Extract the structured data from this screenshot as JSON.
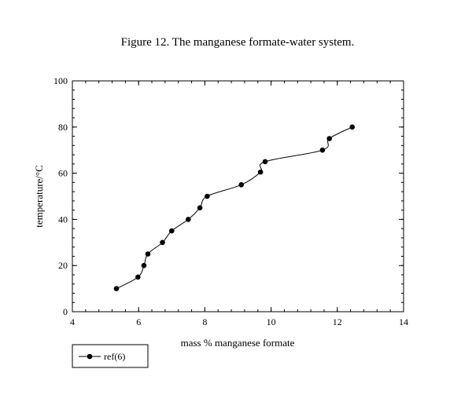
{
  "chart_data": {
    "type": "line",
    "title": "Figure 12. The manganese formate-water system.",
    "xlabel": "mass % manganese formate",
    "ylabel": "temperature/°C",
    "xlim": [
      4,
      14
    ],
    "ylim": [
      0,
      100
    ],
    "x_ticks": [
      4,
      6,
      8,
      10,
      12,
      14
    ],
    "y_ticks": [
      0,
      20,
      40,
      60,
      80,
      100
    ],
    "grid": false,
    "legend_position": "bottom-left, below plot",
    "series": [
      {
        "name": "ref(6)",
        "color": "#000000",
        "marker": "filled-circle",
        "x": [
          5.33,
          5.98,
          6.16,
          6.28,
          6.72,
          7.0,
          7.5,
          7.85,
          8.07,
          9.1,
          9.68,
          9.82,
          11.55,
          11.76,
          12.45
        ],
        "y": [
          10,
          15,
          20,
          25,
          30,
          35,
          40,
          45,
          50,
          55,
          60.5,
          65,
          70,
          75,
          80
        ]
      }
    ]
  }
}
